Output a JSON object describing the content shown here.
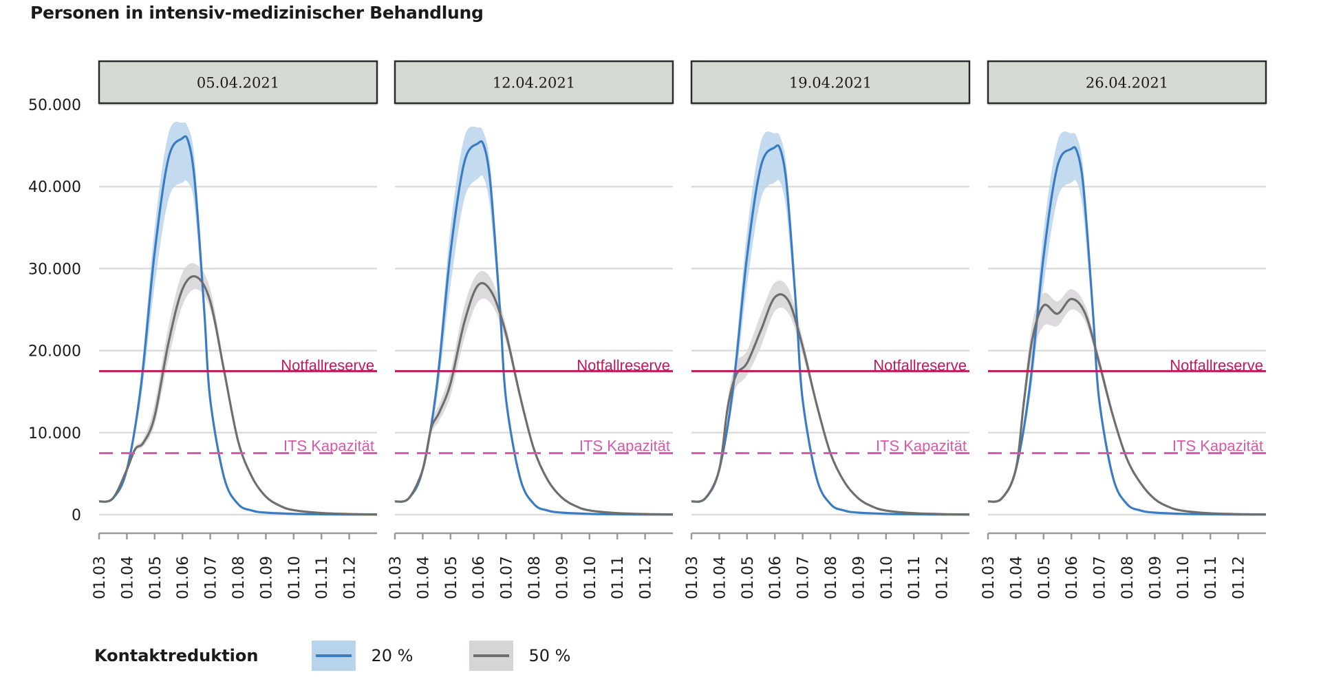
{
  "chart_data": {
    "type": "line",
    "title": "Personen in intensiv-medizinischer Behandlung",
    "ylabel": "",
    "xlabel": "",
    "ylim": [
      0,
      50000
    ],
    "y_ticks": [
      0,
      10000,
      20000,
      30000,
      40000,
      50000
    ],
    "y_tick_labels": [
      "0",
      "10.000",
      "20.000",
      "30.000",
      "40.000",
      "50.000"
    ],
    "x_tick_labels": [
      "01.03",
      "01.04",
      "01.05",
      "01.06",
      "01.07",
      "01.08",
      "01.09",
      "01.10",
      "01.11",
      "01.12"
    ],
    "x_month_range": [
      0,
      10
    ],
    "reference_lines": [
      {
        "name": "Notfallreserve",
        "value": 17500,
        "style": "solid",
        "color": "#c2185b"
      },
      {
        "name": "ITS Kapazität",
        "value": 7500,
        "style": "dashed",
        "color": "#d35aa8"
      }
    ],
    "legend": {
      "title": "Kontaktreduktion",
      "entries": [
        {
          "label": "20 %",
          "color": "#3a7cc4",
          "band_color": "#b8d3ec"
        },
        {
          "label": "50 %",
          "color": "#6e6e6e",
          "band_color": "#d7d4d8"
        }
      ]
    },
    "panels": [
      {
        "label": "05.04.2021",
        "series": [
          {
            "name": "20 %",
            "x": [
              0,
              0.5,
              1,
              1.5,
              2,
              2.5,
              3,
              3.2,
              3.4,
              3.6,
              3.8,
              4,
              4.5,
              5,
              5.5,
              6,
              7,
              8,
              9,
              10
            ],
            "y": [
              1600,
              2000,
              5500,
              15500,
              32000,
              43500,
              45900,
              45600,
              42000,
              34000,
              24000,
              14000,
              4500,
              1300,
              500,
              250,
              100,
              50,
              20,
              10
            ],
            "lower": [
              1600,
              2000,
              5300,
              14000,
              28000,
              38500,
              40500,
              40500,
              38500,
              31500,
              22500,
              13500,
              4300,
              1200,
              450,
              220,
              90,
              45,
              18,
              9
            ],
            "upper": [
              1600,
              2000,
              5800,
              16800,
              35000,
              46500,
              47800,
              47200,
              44500,
              36000,
              25500,
              14500,
              4700,
              1400,
              550,
              280,
              110,
              55,
              22,
              11
            ]
          },
          {
            "name": "50 %",
            "x": [
              0,
              0.5,
              1,
              1.3,
              1.6,
              2,
              2.5,
              3,
              3.5,
              4,
              4.5,
              5,
              5.5,
              6,
              6.5,
              7,
              8,
              9,
              10
            ],
            "y": [
              1600,
              2000,
              5500,
              8000,
              8800,
              12000,
              21000,
              27500,
              29000,
              26000,
              17500,
              9000,
              4600,
              2200,
              1100,
              550,
              200,
              80,
              30
            ],
            "lower": [
              1600,
              2000,
              5300,
              7700,
              8400,
              11000,
              19000,
              25500,
              27500,
              25000,
              17000,
              8600,
              4400,
              2100,
              1050,
              520,
              190,
              75,
              28
            ],
            "upper": [
              1600,
              2000,
              5700,
              8300,
              9300,
              13500,
              23000,
              29500,
              30500,
              27500,
              18300,
              9400,
              4800,
              2300,
              1150,
              580,
              210,
              85,
              32
            ]
          }
        ]
      },
      {
        "label": "12.04.2021",
        "series": [
          {
            "name": "20 %",
            "x": [
              0,
              0.5,
              1,
              1.5,
              2,
              2.5,
              3,
              3.2,
              3.4,
              3.6,
              3.8,
              4,
              4.5,
              5,
              5.5,
              6,
              7,
              8,
              9,
              10
            ],
            "y": [
              1600,
              2000,
              5500,
              15500,
              32000,
              43000,
              45300,
              45000,
              41500,
              33500,
              24000,
              14000,
              4500,
              1300,
              500,
              250,
              100,
              50,
              20,
              10
            ],
            "lower": [
              1600,
              2000,
              5300,
              14000,
              28000,
              38500,
              41000,
              41000,
              38000,
              31000,
              22500,
              13500,
              4300,
              1200,
              450,
              220,
              90,
              45,
              18,
              9
            ],
            "upper": [
              1600,
              2000,
              5800,
              16800,
              35000,
              46000,
              47200,
              46500,
              43500,
              35500,
              25500,
              14500,
              4700,
              1400,
              550,
              280,
              110,
              55,
              22,
              11
            ]
          },
          {
            "name": "50 %",
            "x": [
              0,
              0.5,
              1,
              1.3,
              1.6,
              2,
              2.5,
              3,
              3.5,
              4,
              4.5,
              5,
              5.5,
              6,
              6.5,
              7,
              8,
              9,
              10
            ],
            "y": [
              1600,
              2000,
              5500,
              10500,
              12500,
              16000,
              23500,
              28000,
              27000,
              22000,
              14500,
              8000,
              4200,
              2100,
              1050,
              520,
              190,
              75,
              30
            ],
            "lower": [
              1600,
              2000,
              5300,
              9800,
              11500,
              14500,
              21500,
              26000,
              25500,
              21000,
              14000,
              7700,
              4000,
              2000,
              1000,
              500,
              180,
              70,
              28
            ],
            "upper": [
              1600,
              2000,
              5700,
              11300,
              13500,
              17500,
              25500,
              29500,
              28500,
              23000,
              15000,
              8300,
              4400,
              2200,
              1100,
              540,
              200,
              80,
              32
            ]
          }
        ]
      },
      {
        "label": "19.04.2021",
        "series": [
          {
            "name": "20 %",
            "x": [
              0,
              0.5,
              1,
              1.5,
              2,
              2.5,
              3,
              3.2,
              3.4,
              3.6,
              3.8,
              4,
              4.5,
              5,
              5.5,
              6,
              7,
              8,
              9,
              10
            ],
            "y": [
              1600,
              2000,
              5500,
              15500,
              31500,
              42500,
              44800,
              44500,
              41000,
              33000,
              23500,
              14000,
              4500,
              1300,
              500,
              250,
              100,
              50,
              20,
              10
            ],
            "lower": [
              1600,
              2000,
              5300,
              14000,
              28000,
              38500,
              40500,
              40500,
              37500,
              30500,
              22000,
              13500,
              4300,
              1200,
              450,
              220,
              90,
              45,
              18,
              9
            ],
            "upper": [
              1600,
              2000,
              5800,
              16800,
              34500,
              45500,
              46500,
              46000,
              43000,
              35000,
              25000,
              14500,
              4700,
              1400,
              550,
              280,
              110,
              55,
              22,
              11
            ]
          },
          {
            "name": "50 %",
            "x": [
              0,
              0.5,
              1,
              1.3,
              1.6,
              2,
              2.5,
              3,
              3.5,
              4,
              4.5,
              5,
              5.5,
              6,
              6.5,
              7,
              8,
              9,
              10
            ],
            "y": [
              1600,
              2000,
              5500,
              13000,
              17000,
              18500,
              22500,
              26500,
              26000,
              20500,
              13500,
              7500,
              4000,
              2000,
              1000,
              500,
              180,
              70,
              30
            ],
            "lower": [
              1600,
              2000,
              5300,
              12000,
              15500,
              17000,
              20500,
              24800,
              24500,
              19500,
              13000,
              7200,
              3800,
              1900,
              950,
              480,
              170,
              65,
              28
            ],
            "upper": [
              1600,
              2000,
              5700,
              14000,
              18500,
              20000,
              24500,
              28300,
              27500,
              21500,
              14000,
              7800,
              4200,
              2100,
              1050,
              520,
              190,
              75,
              32
            ]
          }
        ]
      },
      {
        "label": "26.04.2021",
        "series": [
          {
            "name": "20 %",
            "x": [
              0,
              0.5,
              1,
              1.5,
              2,
              2.5,
              3,
              3.2,
              3.4,
              3.6,
              3.8,
              4,
              4.5,
              5,
              5.5,
              6,
              7,
              8,
              9,
              10
            ],
            "y": [
              1600,
              2000,
              5500,
              15500,
              31500,
              42500,
              44600,
              44300,
              41000,
              33000,
              23500,
              14000,
              4500,
              1300,
              500,
              250,
              100,
              50,
              20,
              10
            ],
            "lower": [
              1600,
              2000,
              5300,
              14000,
              28000,
              38500,
              40500,
              40500,
              37500,
              30500,
              22000,
              13500,
              4300,
              1200,
              450,
              220,
              90,
              45,
              18,
              9
            ],
            "upper": [
              1600,
              2000,
              5800,
              16800,
              34500,
              45500,
              46500,
              46000,
              43000,
              35000,
              25000,
              14500,
              4700,
              1400,
              550,
              280,
              110,
              55,
              22,
              11
            ]
          },
          {
            "name": "50 %",
            "x": [
              0,
              0.5,
              1,
              1.3,
              1.6,
              2,
              2.5,
              3,
              3.5,
              4,
              4.5,
              5,
              5.5,
              6,
              6.5,
              7,
              8,
              9,
              10
            ],
            "y": [
              1600,
              2000,
              5500,
              14000,
              21500,
              25500,
              24500,
              26300,
              24500,
              18500,
              12000,
              6800,
              3800,
              1900,
              950,
              480,
              170,
              65,
              30
            ],
            "lower": [
              1600,
              2000,
              5300,
              13000,
              19500,
              23000,
              23000,
              25000,
              23500,
              17800,
              11500,
              6500,
              3600,
              1800,
              900,
              460,
              160,
              60,
              28
            ],
            "upper": [
              1600,
              2000,
              5700,
              15000,
              23500,
              27000,
              26000,
              27500,
              25500,
              19300,
              12500,
              7100,
              4000,
              2000,
              1000,
              500,
              180,
              70,
              32
            ]
          }
        ]
      }
    ]
  }
}
